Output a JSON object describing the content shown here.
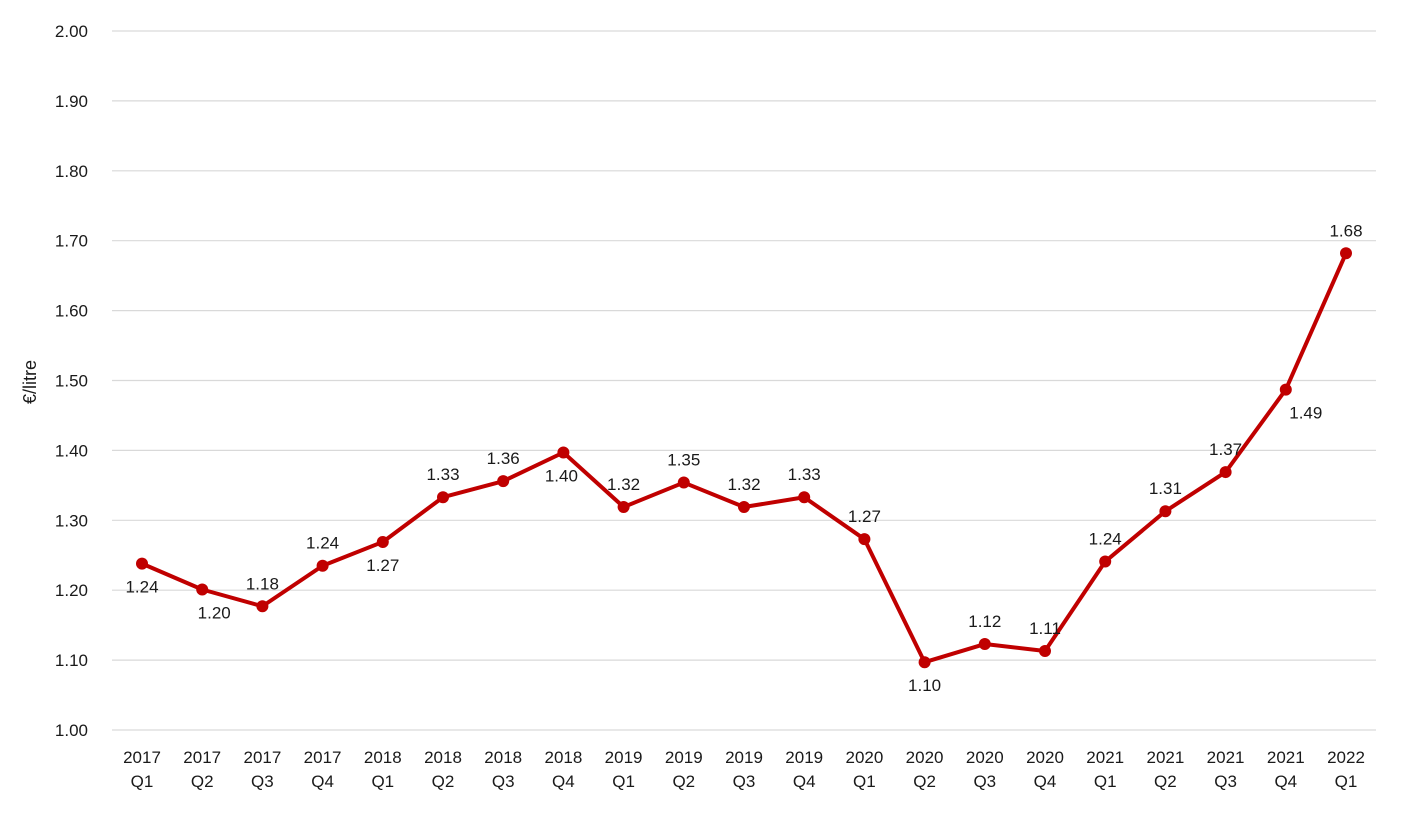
{
  "chart_data": {
    "type": "line",
    "title": "",
    "xlabel": "",
    "ylabel": "€/litre",
    "ylim": [
      1.0,
      2.0
    ],
    "yticks": [
      "1.00",
      "1.10",
      "1.20",
      "1.30",
      "1.40",
      "1.50",
      "1.60",
      "1.70",
      "1.80",
      "1.90",
      "2.00"
    ],
    "ytick_values": [
      1.0,
      1.1,
      1.2,
      1.3,
      1.4,
      1.5,
      1.6,
      1.7,
      1.8,
      1.9,
      2.0
    ],
    "grid": true,
    "categories": [
      {
        "year": "2017",
        "quarter": "Q1"
      },
      {
        "year": "2017",
        "quarter": "Q2"
      },
      {
        "year": "2017",
        "quarter": "Q3"
      },
      {
        "year": "2017",
        "quarter": "Q4"
      },
      {
        "year": "2018",
        "quarter": "Q1"
      },
      {
        "year": "2018",
        "quarter": "Q2"
      },
      {
        "year": "2018",
        "quarter": "Q3"
      },
      {
        "year": "2018",
        "quarter": "Q4"
      },
      {
        "year": "2019",
        "quarter": "Q1"
      },
      {
        "year": "2019",
        "quarter": "Q2"
      },
      {
        "year": "2019",
        "quarter": "Q3"
      },
      {
        "year": "2019",
        "quarter": "Q4"
      },
      {
        "year": "2020",
        "quarter": "Q1"
      },
      {
        "year": "2020",
        "quarter": "Q2"
      },
      {
        "year": "2020",
        "quarter": "Q3"
      },
      {
        "year": "2020",
        "quarter": "Q4"
      },
      {
        "year": "2021",
        "quarter": "Q1"
      },
      {
        "year": "2021",
        "quarter": "Q2"
      },
      {
        "year": "2021",
        "quarter": "Q3"
      },
      {
        "year": "2021",
        "quarter": "Q4"
      },
      {
        "year": "2022",
        "quarter": "Q1"
      }
    ],
    "values": [
      1.238,
      1.201,
      1.177,
      1.235,
      1.269,
      1.333,
      1.356,
      1.397,
      1.319,
      1.354,
      1.319,
      1.333,
      1.273,
      1.097,
      1.123,
      1.113,
      1.241,
      1.313,
      1.369,
      1.487,
      1.682
    ],
    "labels": [
      "1.24",
      "1.20",
      "1.18",
      "1.24",
      "1.27",
      "1.33",
      "1.36",
      "1.40",
      "1.32",
      "1.35",
      "1.32",
      "1.33",
      "1.27",
      "1.10",
      "1.12",
      "1.11",
      "1.24",
      "1.31",
      "1.37",
      "1.49",
      "1.68"
    ],
    "label_positions": [
      "below",
      "below",
      "above",
      "above",
      "below",
      "above",
      "above",
      "below",
      "above",
      "above",
      "above",
      "above",
      "above",
      "below",
      "above",
      "above",
      "above",
      "above",
      "above",
      "below",
      "above"
    ],
    "series_color": "#c00000",
    "grid_color": "#d9d9d9"
  }
}
